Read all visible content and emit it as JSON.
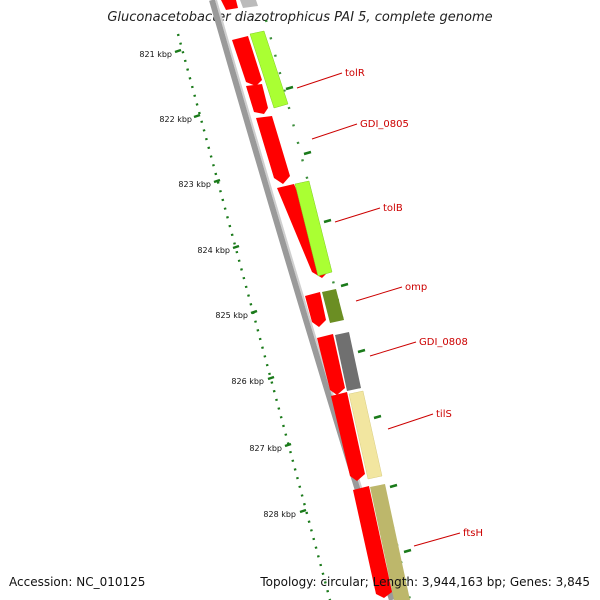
{
  "title": "Gluconacetobacter diazotrophicus PAI 5, complete genome",
  "footer": {
    "accession": "Accession: NC_010125",
    "summary": "Topology: circular; Length: 3,944,163 bp; Genes: 3,845"
  },
  "ticks": [
    {
      "label": "821 kbp"
    },
    {
      "label": "822 kbp"
    },
    {
      "label": "823 kbp"
    },
    {
      "label": "824 kbp"
    },
    {
      "label": "825 kbp"
    },
    {
      "label": "826 kbp"
    },
    {
      "label": "827 kbp"
    },
    {
      "label": "828 kbp"
    }
  ],
  "genes": [
    {
      "label": "tolR"
    },
    {
      "label": "GDI_0805"
    },
    {
      "label": "tolB"
    },
    {
      "label": "omp"
    },
    {
      "label": "GDI_0808"
    },
    {
      "label": "tilS"
    },
    {
      "label": "ftsH"
    }
  ],
  "colors": {
    "cds": "#ff0000",
    "tolR": "#aaff33",
    "tolB": "#aaff33",
    "omp": "#6b8e23",
    "GDI_0808": "#707070",
    "tilS": "#f2e6a0",
    "ftsH": "#bdb76b",
    "backbone": "#888888",
    "tick": "#1a7a1a",
    "label": "#cc0000"
  }
}
